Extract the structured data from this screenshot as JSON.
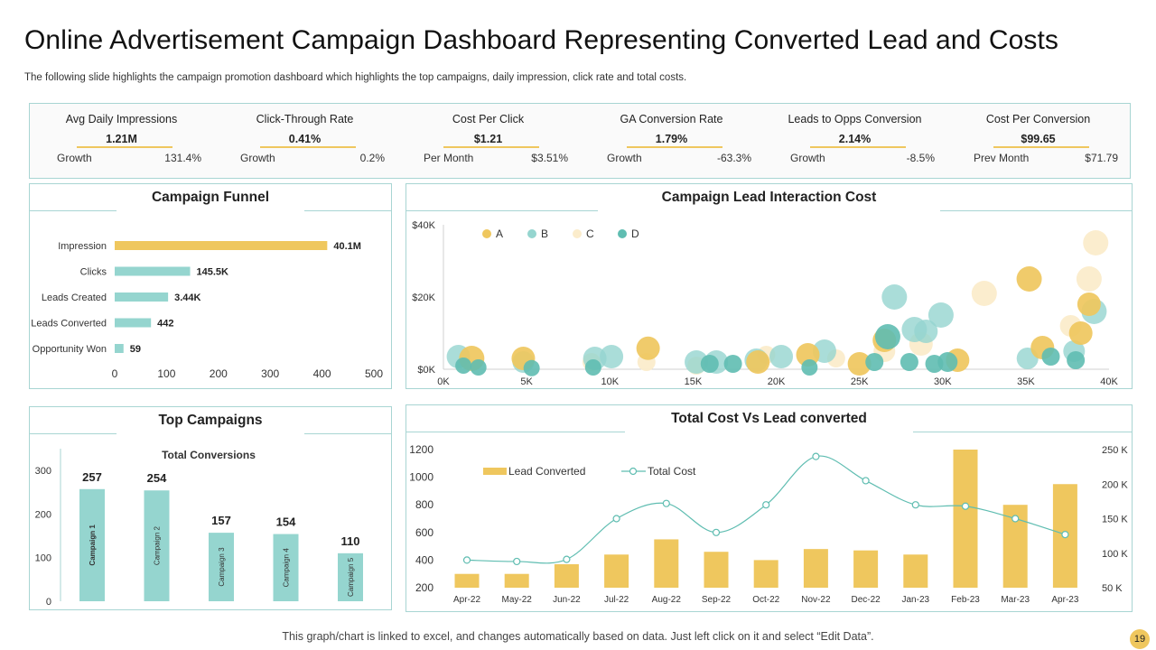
{
  "header": {
    "title": "Online Advertisement Campaign Dashboard Representing Converted Lead and Costs",
    "subtitle": "The following slide highlights the campaign promotion dashboard which highlights the top campaigns, daily impression, click rate and total costs."
  },
  "kpis": [
    {
      "title": "Avg Daily Impressions",
      "value": "1.21M",
      "sub_label": "Growth",
      "sub_value": "131.4%"
    },
    {
      "title": "Click-Through Rate",
      "value": "0.41%",
      "sub_label": "Growth",
      "sub_value": "0.2%"
    },
    {
      "title": "Cost Per Click",
      "value": "$1.21",
      "sub_label": "Per Month",
      "sub_value": "$3.51%"
    },
    {
      "title": "GA Conversion Rate",
      "value": "1.79%",
      "sub_label": "Growth",
      "sub_value": "-63.3%"
    },
    {
      "title": "Leads to Opps Conversion",
      "value": "2.14%",
      "sub_label": "Growth",
      "sub_value": "-8.5%"
    },
    {
      "title": "Cost Per Conversion",
      "value": "$99.65",
      "sub_label": "Prev Month",
      "sub_value": "$71.79"
    }
  ],
  "colors": {
    "yellow": "#efc75e",
    "teal": "#95d5cf",
    "cream": "#fbeccb",
    "teal_dark": "#5fbdb1",
    "border": "#a8d5d3",
    "badge": "#efc75e"
  },
  "chart_data": [
    {
      "id": "funnel",
      "type": "bar",
      "orientation": "horizontal",
      "title": "Campaign Funnel",
      "categories": [
        "Impression",
        "Clicks",
        "Leads Created",
        "Leads Converted",
        "Opportunity Won"
      ],
      "values": [
        410,
        145.5,
        103,
        70,
        17
      ],
      "labels": [
        "40.1M",
        "145.5K",
        "3.44K",
        "442",
        "59"
      ],
      "xlim": [
        0,
        500
      ],
      "xticks": [
        0,
        100,
        200,
        300,
        400,
        500
      ]
    },
    {
      "id": "bubble",
      "type": "scatter",
      "title": "Campaign Lead Interaction Cost",
      "xlim": [
        0,
        40000
      ],
      "ylim": [
        0,
        40000
      ],
      "xtick_labels": [
        "0K",
        "5K",
        "10K",
        "15K",
        "20K",
        "25K",
        "30K",
        "35K",
        "40K"
      ],
      "ytick_labels": [
        "$0K",
        "$20K",
        "$40K"
      ],
      "legend": [
        "A",
        "B",
        "C",
        "D"
      ],
      "series": [
        {
          "name": "A",
          "points": [
            [
              1700,
              3000,
              14
            ],
            [
              4800,
              3000,
              13
            ],
            [
              12300,
              5800,
              13
            ],
            [
              18900,
              2000,
              13
            ],
            [
              21900,
              4000,
              13
            ],
            [
              25000,
              1500,
              13
            ],
            [
              26500,
              8000,
              13
            ],
            [
              30900,
              2500,
              13
            ],
            [
              35200,
              25000,
              14
            ],
            [
              36000,
              6000,
              13
            ],
            [
              38300,
              10000,
              13
            ],
            [
              38800,
              18000,
              13
            ]
          ]
        },
        {
          "name": "B",
          "points": [
            [
              900,
              3500,
              13
            ],
            [
              4800,
              2000,
              12
            ],
            [
              9100,
              3000,
              13
            ],
            [
              10100,
              3500,
              13
            ],
            [
              15200,
              2000,
              13
            ],
            [
              16400,
              2000,
              13
            ],
            [
              18800,
              2500,
              13
            ],
            [
              20300,
              3500,
              13
            ],
            [
              22900,
              5000,
              13
            ],
            [
              27100,
              20000,
              14
            ],
            [
              28300,
              11000,
              14
            ],
            [
              29000,
              10500,
              13
            ],
            [
              29900,
              15000,
              14
            ],
            [
              35100,
              3000,
              12
            ],
            [
              37900,
              5000,
              12
            ],
            [
              39100,
              16000,
              14
            ]
          ]
        },
        {
          "name": "C",
          "points": [
            [
              8900,
              2000,
              10
            ],
            [
              12200,
              2000,
              10
            ],
            [
              15200,
              1000,
              10
            ],
            [
              19400,
              4000,
              10
            ],
            [
              23600,
              3000,
              10
            ],
            [
              26500,
              5000,
              12
            ],
            [
              28700,
              7000,
              13
            ],
            [
              32500,
              21000,
              14
            ],
            [
              37700,
              12000,
              12
            ],
            [
              38800,
              25000,
              14
            ],
            [
              39200,
              35000,
              14
            ]
          ]
        },
        {
          "name": "D",
          "points": [
            [
              1200,
              1000,
              9
            ],
            [
              2100,
              500,
              9
            ],
            [
              5300,
              300,
              9
            ],
            [
              9000,
              500,
              9
            ],
            [
              16000,
              1500,
              10
            ],
            [
              17400,
              1500,
              10
            ],
            [
              22000,
              500,
              9
            ],
            [
              25900,
              2000,
              10
            ],
            [
              26700,
              9000,
              14
            ],
            [
              28000,
              2000,
              10
            ],
            [
              29500,
              1500,
              10
            ],
            [
              30300,
              2000,
              11
            ],
            [
              36500,
              3500,
              10
            ],
            [
              38000,
              2500,
              10
            ]
          ]
        }
      ]
    },
    {
      "id": "top_campaigns",
      "type": "bar",
      "title": "Top Campaigns",
      "subtitle": "Total Conversions",
      "categories": [
        "Campaign 1",
        "Campaign 2",
        "Campaign 3",
        "Campaign 4",
        "Campaign 5"
      ],
      "values": [
        257,
        254,
        157,
        154,
        110
      ],
      "ylim": [
        0,
        300
      ],
      "yticks": [
        0,
        100,
        200,
        300
      ]
    },
    {
      "id": "cost_vs_leads",
      "type": "bar",
      "title": "Total Cost Vs Lead converted",
      "categories": [
        "Apr-22",
        "May-22",
        "Jun-22",
        "Jul-22",
        "Aug-22",
        "Sep-22",
        "Oct-22",
        "Nov-22",
        "Dec-22",
        "Jan-23",
        "Feb-23",
        "Mar-23",
        "Apr-23"
      ],
      "series": [
        {
          "name": "Lead Converted",
          "type": "bar",
          "axis": "left",
          "values": [
            300,
            300,
            370,
            440,
            550,
            460,
            400,
            480,
            470,
            440,
            1200,
            800,
            950
          ]
        },
        {
          "name": "Total Cost",
          "type": "line",
          "axis": "right",
          "values": [
            90,
            88,
            91,
            150,
            172,
            130,
            170,
            240,
            205,
            170,
            168,
            150,
            127
          ]
        }
      ],
      "ylim_left": [
        200,
        1200
      ],
      "yticks_left": [
        "200",
        "400",
        "600",
        "800",
        "1000",
        "1200"
      ],
      "ylim_right": [
        50,
        250
      ],
      "yticks_right": [
        "50 K",
        "100 K",
        "150 K",
        "200 K",
        "250 K"
      ]
    }
  ],
  "footer": {
    "note": "This graph/chart is linked to excel, and changes automatically based on data. Just left click on it and select “Edit Data”.",
    "page_number": "19"
  }
}
